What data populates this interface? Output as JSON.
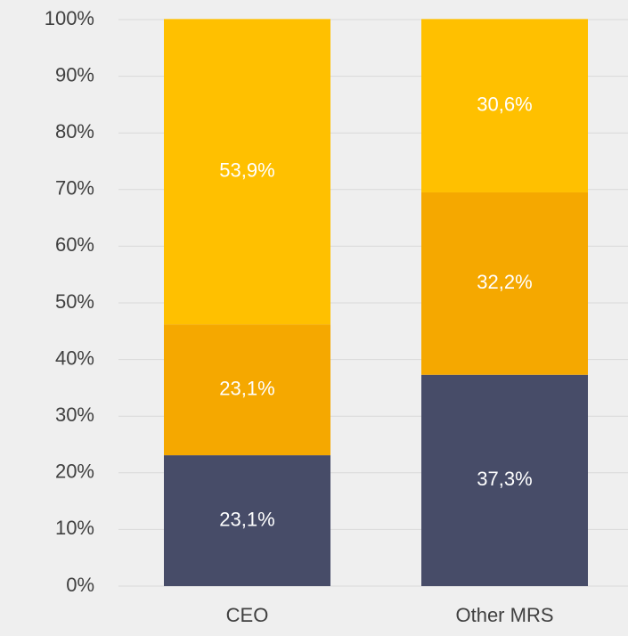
{
  "chart_data": {
    "type": "stacked_bar",
    "categories": [
      "CEO",
      "Other MRS"
    ],
    "series": [
      {
        "color": "#474c68",
        "values": [
          23.1,
          37.3
        ],
        "value_labels": [
          "23,1%",
          "37,3%"
        ]
      },
      {
        "color": "#f5a800",
        "values": [
          23.1,
          32.2
        ],
        "value_labels": [
          "23,1%",
          "32,2%"
        ]
      },
      {
        "color": "#ffc000",
        "values": [
          53.9,
          30.6
        ],
        "value_labels": [
          "53,9%",
          "30,6%"
        ]
      }
    ],
    "ylim": [
      0,
      100
    ],
    "yticks": [
      {
        "value": 0,
        "label": "0%"
      },
      {
        "value": 10,
        "label": "10%"
      },
      {
        "value": 20,
        "label": "20%"
      },
      {
        "value": 30,
        "label": "30%"
      },
      {
        "value": 40,
        "label": "40%"
      },
      {
        "value": 50,
        "label": "50%"
      },
      {
        "value": 60,
        "label": "60%"
      },
      {
        "value": 70,
        "label": "70%"
      },
      {
        "value": 80,
        "label": "80%"
      },
      {
        "value": 90,
        "label": "90%"
      },
      {
        "value": 100,
        "label": "100%"
      }
    ],
    "grid": true
  }
}
